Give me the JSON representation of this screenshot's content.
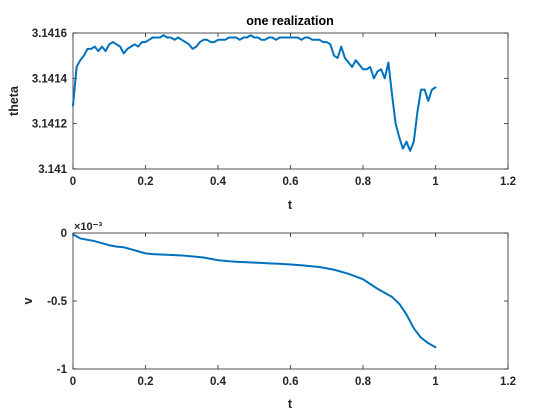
{
  "chart_data": [
    {
      "type": "line",
      "title": "one realization",
      "xlabel": "t",
      "ylabel": "theta",
      "xlim": [
        0,
        1.2
      ],
      "ylim": [
        3.141,
        3.1416
      ],
      "xticks": [
        0,
        0.2,
        0.4,
        0.6,
        0.8,
        1,
        1.2
      ],
      "xtick_labels": [
        "0",
        "0.2",
        "0.4",
        "0.6",
        "0.8",
        "1",
        "1.2"
      ],
      "yticks": [
        3.141,
        3.1412,
        3.1414,
        3.1416
      ],
      "ytick_labels": [
        "3.141",
        "3.1412",
        "3.1414",
        "3.1416"
      ],
      "grid": false,
      "color": "#0072BD",
      "x": [
        0,
        0.01,
        0.02,
        0.03,
        0.04,
        0.05,
        0.06,
        0.07,
        0.08,
        0.09,
        0.1,
        0.11,
        0.12,
        0.13,
        0.14,
        0.15,
        0.16,
        0.17,
        0.18,
        0.19,
        0.2,
        0.21,
        0.22,
        0.23,
        0.24,
        0.25,
        0.26,
        0.27,
        0.28,
        0.29,
        0.3,
        0.31,
        0.32,
        0.33,
        0.34,
        0.35,
        0.36,
        0.37,
        0.38,
        0.39,
        0.4,
        0.41,
        0.42,
        0.43,
        0.44,
        0.45,
        0.46,
        0.47,
        0.48,
        0.49,
        0.5,
        0.51,
        0.52,
        0.53,
        0.54,
        0.55,
        0.56,
        0.57,
        0.58,
        0.59,
        0.6,
        0.61,
        0.62,
        0.63,
        0.64,
        0.65,
        0.66,
        0.67,
        0.68,
        0.69,
        0.7,
        0.71,
        0.72,
        0.73,
        0.74,
        0.75,
        0.76,
        0.77,
        0.78,
        0.79,
        0.8,
        0.81,
        0.82,
        0.83,
        0.84,
        0.85,
        0.86,
        0.87,
        0.88,
        0.89,
        0.9,
        0.91,
        0.92,
        0.93,
        0.94,
        0.95,
        0.96,
        0.97,
        0.98,
        0.99,
        1
      ],
      "y": [
        3.14128,
        3.14145,
        3.14148,
        3.1415,
        3.14153,
        3.14153,
        3.14154,
        3.14152,
        3.14154,
        3.14152,
        3.14155,
        3.14156,
        3.14155,
        3.14154,
        3.14151,
        3.14153,
        3.14154,
        3.14155,
        3.14154,
        3.14156,
        3.14156,
        3.14157,
        3.14158,
        3.14158,
        3.14158,
        3.14159,
        3.14158,
        3.14158,
        3.14157,
        3.14158,
        3.14157,
        3.14156,
        3.14155,
        3.14153,
        3.14154,
        3.14156,
        3.14157,
        3.14157,
        3.14156,
        3.14156,
        3.14157,
        3.14157,
        3.14157,
        3.14158,
        3.14158,
        3.14158,
        3.14157,
        3.14158,
        3.14158,
        3.14159,
        3.14158,
        3.14158,
        3.14157,
        3.14157,
        3.14158,
        3.14158,
        3.14157,
        3.14158,
        3.14158,
        3.14158,
        3.14158,
        3.14158,
        3.14158,
        3.14157,
        3.14158,
        3.14158,
        3.14157,
        3.14157,
        3.14157,
        3.14156,
        3.14156,
        3.14155,
        3.1415,
        3.14149,
        3.14154,
        3.14149,
        3.14147,
        3.14145,
        3.14148,
        3.14146,
        3.14144,
        3.14144,
        3.14145,
        3.1414,
        3.14143,
        3.14144,
        3.1414,
        3.14147,
        3.14133,
        3.1412,
        3.14114,
        3.14109,
        3.14112,
        3.14108,
        3.14112,
        3.14125,
        3.14135,
        3.14135,
        3.1413,
        3.14135,
        3.14136
      ]
    },
    {
      "type": "line",
      "title": "",
      "xlabel": "t",
      "ylabel": "v",
      "exponent_label": "×10⁻³",
      "xlim": [
        0,
        1.2
      ],
      "ylim": [
        -0.001,
        0
      ],
      "xticks": [
        0,
        0.2,
        0.4,
        0.6,
        0.8,
        1,
        1.2
      ],
      "xtick_labels": [
        "0",
        "0.2",
        "0.4",
        "0.6",
        "0.8",
        "1",
        "1.2"
      ],
      "yticks": [
        -0.001,
        -0.0005,
        0
      ],
      "ytick_labels": [
        "-1",
        "-0.5",
        "0"
      ],
      "grid": false,
      "color": "#0072BD",
      "x": [
        0,
        0.01,
        0.02,
        0.04,
        0.06,
        0.08,
        0.1,
        0.12,
        0.14,
        0.16,
        0.18,
        0.2,
        0.22,
        0.24,
        0.26,
        0.28,
        0.3,
        0.32,
        0.34,
        0.36,
        0.38,
        0.4,
        0.42,
        0.44,
        0.46,
        0.48,
        0.5,
        0.52,
        0.54,
        0.56,
        0.58,
        0.6,
        0.62,
        0.64,
        0.66,
        0.68,
        0.7,
        0.72,
        0.74,
        0.76,
        0.78,
        0.8,
        0.82,
        0.84,
        0.86,
        0.88,
        0.9,
        0.92,
        0.94,
        0.96,
        0.98,
        1
      ],
      "y": [
        -1e-05,
        -2.5e-05,
        -4e-05,
        -5e-05,
        -6e-05,
        -7.5e-05,
        -9e-05,
        -0.0001,
        -0.000105,
        -0.00012,
        -0.000135,
        -0.00015,
        -0.000155,
        -0.000158,
        -0.00016,
        -0.000163,
        -0.000165,
        -0.00017,
        -0.000175,
        -0.00018,
        -0.00019,
        -0.0002,
        -0.000205,
        -0.00021,
        -0.000213,
        -0.000215,
        -0.000218,
        -0.00022,
        -0.000223,
        -0.000225,
        -0.000228,
        -0.000232,
        -0.000235,
        -0.00024,
        -0.000245,
        -0.00025,
        -0.00026,
        -0.00027,
        -0.000285,
        -0.0003,
        -0.00032,
        -0.00034,
        -0.000375,
        -0.00041,
        -0.00044,
        -0.00047,
        -0.00052,
        -0.0006,
        -0.0007,
        -0.00077,
        -0.00081,
        -0.00084
      ]
    }
  ]
}
